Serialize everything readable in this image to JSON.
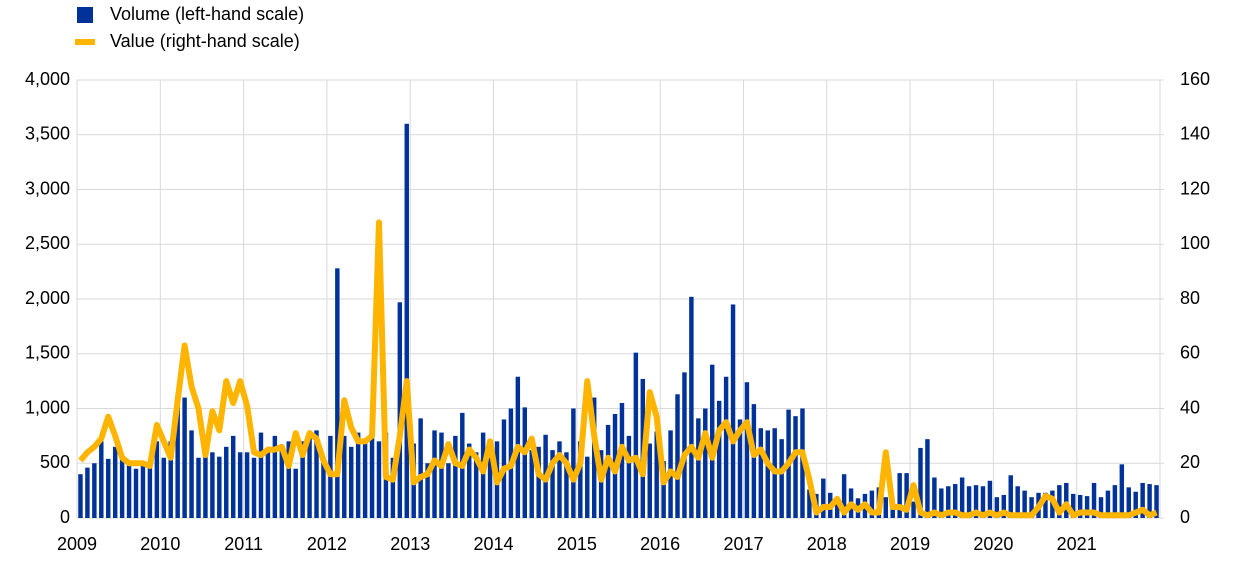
{
  "chart_data": {
    "type": "bar-line",
    "categories": [
      "2009",
      null,
      null,
      null,
      null,
      null,
      null,
      null,
      null,
      null,
      null,
      null,
      "2010",
      null,
      null,
      null,
      null,
      null,
      null,
      null,
      null,
      null,
      null,
      null,
      "2011",
      null,
      null,
      null,
      null,
      null,
      null,
      null,
      null,
      null,
      null,
      null,
      "2012",
      null,
      null,
      null,
      null,
      null,
      null,
      null,
      null,
      null,
      null,
      null,
      "2013",
      null,
      null,
      null,
      null,
      null,
      null,
      null,
      null,
      null,
      null,
      null,
      "2014",
      null,
      null,
      null,
      null,
      null,
      null,
      null,
      null,
      null,
      null,
      null,
      "2015",
      null,
      null,
      null,
      null,
      null,
      null,
      null,
      null,
      null,
      null,
      null,
      "2016",
      null,
      null,
      null,
      null,
      null,
      null,
      null,
      null,
      null,
      null,
      null,
      "2017",
      null,
      null,
      null,
      null,
      null,
      null,
      null,
      null,
      null,
      null,
      null,
      "2018",
      null,
      null,
      null,
      null,
      null,
      null,
      null,
      null,
      null,
      null,
      null,
      "2019",
      null,
      null,
      null,
      null,
      null,
      null,
      null,
      null,
      null,
      null,
      null,
      "2020",
      null,
      null,
      null,
      null,
      null,
      null,
      null,
      null,
      null,
      null,
      null,
      "2021",
      null,
      null,
      null,
      null,
      null,
      null,
      null,
      null,
      null,
      null,
      null
    ],
    "series": [
      {
        "name": "Volume (left-hand scale)",
        "type": "bar",
        "color": "#003299",
        "values": [
          400,
          460,
          500,
          700,
          540,
          650,
          560,
          520,
          450,
          480,
          470,
          700,
          550,
          700,
          1050,
          1100,
          800,
          550,
          650,
          600,
          560,
          650,
          750,
          600,
          600,
          550,
          780,
          600,
          750,
          650,
          700,
          450,
          700,
          750,
          800,
          550,
          750,
          2280,
          750,
          650,
          780,
          700,
          760,
          700,
          780,
          550,
          1970,
          3600,
          680,
          910,
          500,
          800,
          780,
          500,
          750,
          960,
          680,
          600,
          780,
          550,
          700,
          900,
          1000,
          1290,
          1010,
          620,
          650,
          760,
          620,
          700,
          600,
          1000,
          700,
          560,
          1100,
          620,
          850,
          950,
          1050,
          750,
          1510,
          1270,
          680,
          790,
          520,
          800,
          1130,
          1330,
          2020,
          910,
          1000,
          1400,
          1070,
          1290,
          1950,
          900,
          1240,
          1040,
          820,
          800,
          820,
          720,
          990,
          930,
          1000,
          260,
          220,
          360,
          230,
          190,
          400,
          270,
          180,
          220,
          250,
          280,
          190,
          160,
          410,
          410,
          150,
          640,
          720,
          370,
          270,
          290,
          310,
          370,
          290,
          300,
          290,
          340,
          190,
          210,
          390,
          290,
          250,
          190,
          230,
          230,
          250,
          300,
          320,
          220,
          210,
          200,
          320,
          190,
          250,
          300,
          490,
          280,
          240,
          320,
          310,
          300
        ]
      },
      {
        "name": "Value (right-hand scale)",
        "type": "line",
        "axis": "y2",
        "color": "#ffb400",
        "values": [
          21,
          24,
          26,
          29,
          37,
          30,
          22,
          20,
          20,
          20,
          19,
          34,
          28,
          22,
          43,
          63,
          48,
          40,
          23,
          39,
          32,
          50,
          42,
          50,
          41,
          24,
          23,
          25,
          25,
          26,
          19,
          31,
          23,
          31,
          29,
          21,
          16,
          16,
          43,
          33,
          28,
          28,
          30,
          108,
          15,
          14,
          30,
          50,
          13,
          15,
          16,
          21,
          19,
          27,
          20,
          19,
          25,
          22,
          17,
          28,
          13,
          18,
          19,
          26,
          24,
          29,
          16,
          14,
          20,
          23,
          20,
          14,
          20,
          50,
          30,
          14,
          22,
          17,
          26,
          21,
          22,
          16,
          46,
          37,
          13,
          17,
          15,
          23,
          26,
          22,
          31,
          22,
          32,
          35,
          28,
          32,
          35,
          23,
          25,
          20,
          17,
          17,
          20,
          24,
          24,
          14,
          2,
          4,
          4,
          7,
          2,
          5,
          3,
          5,
          2,
          2,
          24,
          4,
          4,
          3,
          12,
          2,
          1,
          2,
          1,
          2,
          2,
          1,
          1,
          2,
          1,
          2,
          1,
          2,
          1,
          1,
          1,
          1,
          4,
          8,
          7,
          2,
          5,
          1,
          2,
          2,
          2,
          1,
          1,
          1,
          1,
          1,
          2,
          3,
          1,
          2
        ]
      }
    ],
    "ylim": [
      0,
      4000
    ],
    "yticks": [
      0,
      500,
      {
        "value": 1000,
        "label": "1,000"
      },
      {
        "value": 1500,
        "label": "1,500"
      },
      {
        "value": 2000,
        "label": "2,000"
      },
      {
        "value": 2500,
        "label": "2,500"
      },
      {
        "value": 3000,
        "label": "3,000"
      },
      {
        "value": 3500,
        "label": "3,500"
      },
      {
        "value": 4000,
        "label": "4,000"
      }
    ],
    "y2lim": [
      0,
      160
    ],
    "y2ticks": [
      0,
      20,
      40,
      60,
      80,
      100,
      120,
      140,
      160
    ],
    "grid": true,
    "legend": "top-left"
  }
}
